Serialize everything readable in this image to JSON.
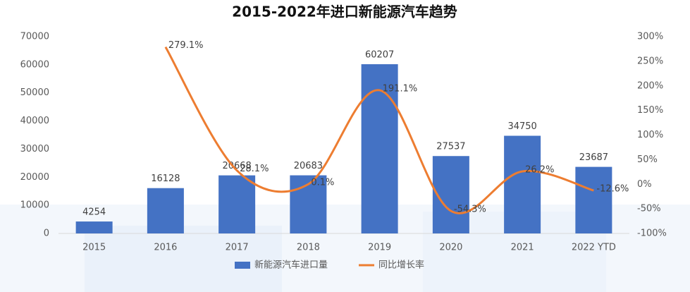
{
  "chart_data": {
    "type": "bar_line",
    "title": "2015-2022年进口新能源汽车趋势",
    "categories": [
      "2015",
      "2016",
      "2017",
      "2018",
      "2019",
      "2020",
      "2021",
      "2022 YTD"
    ],
    "series": [
      {
        "name": "新能源汽车进口量",
        "type": "bar",
        "color": "#4472c4",
        "axis": "y",
        "values": [
          4254,
          16128,
          20668,
          20683,
          60207,
          27537,
          34750,
          23687
        ]
      },
      {
        "name": "同比增长率",
        "type": "line",
        "color": "#ed7d31",
        "axis": "y2",
        "values": [
          null,
          279.1,
          28.1,
          0.1,
          191.1,
          -54.3,
          26.2,
          -12.6
        ],
        "value_labels": [
          null,
          "279.1%",
          "28.1%",
          "0.1%",
          "191.1%",
          "-54.3%",
          "26.2%",
          "-12.6%"
        ]
      }
    ],
    "ylim": [
      0,
      70000
    ],
    "yticks": [
      0,
      10000,
      20000,
      30000,
      40000,
      50000,
      60000,
      70000
    ],
    "y2lim": [
      -100,
      300
    ],
    "y2ticks": [
      {
        "value": 300,
        "label": "300%"
      },
      {
        "value": 250,
        "label": "250%"
      },
      {
        "value": 200,
        "label": "200%"
      },
      {
        "value": 150,
        "label": "150%"
      },
      {
        "value": 100,
        "label": "100%"
      },
      {
        "value": 50,
        "label": "50%"
      },
      {
        "value": 0,
        "label": "0%"
      },
      {
        "value": -50,
        "label": "-50%"
      },
      {
        "value": -100,
        "label": "-100%"
      }
    ],
    "legend": "bottom",
    "grid": false
  }
}
